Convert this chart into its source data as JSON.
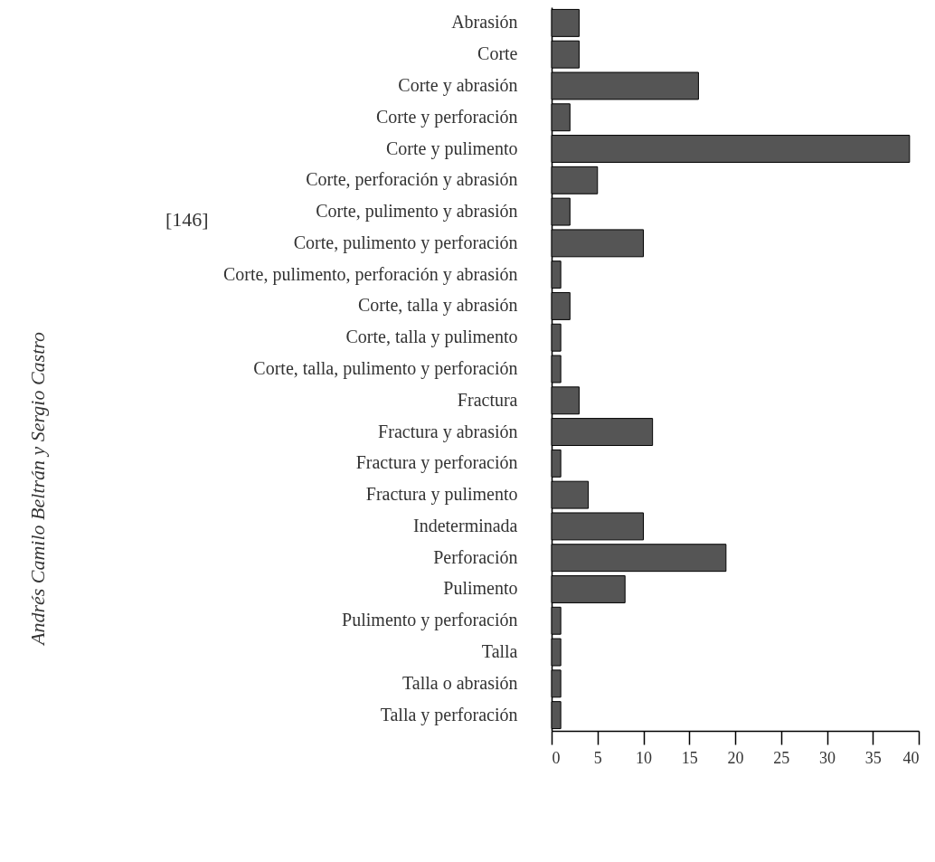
{
  "chart_data": {
    "type": "bar",
    "orientation": "horizontal",
    "categories": [
      "Abrasión",
      "Corte",
      "Corte y abrasión",
      "Corte y perforación",
      "Corte y pulimento",
      "Corte, perforación y abrasión",
      "Corte, pulimento y abrasión",
      "Corte, pulimento y perforación",
      "Corte, pulimento, perforación y abrasión",
      "Corte, talla y abrasión",
      "Corte, talla y pulimento",
      "Corte, talla, pulimento y perforación",
      "Fractura",
      "Fractura y abrasión",
      "Fractura y perforación",
      "Fractura y pulimento",
      "Indeterminada",
      "Perforación",
      "Pulimento",
      "Pulimento y perforación",
      "Talla",
      "Talla o abrasión",
      "Talla y perforación"
    ],
    "values": [
      3,
      3,
      16,
      2,
      39,
      5,
      2,
      10,
      1,
      2,
      1,
      1,
      3,
      11,
      1,
      4,
      10,
      19,
      8,
      1,
      1,
      1,
      1
    ],
    "color": "#555555",
    "xlim": [
      0,
      40
    ],
    "xticks": [
      0,
      5,
      10,
      15,
      20,
      25,
      30,
      35,
      40
    ],
    "grid": false,
    "annotations": [
      "[146]",
      "Andrés Camilo Beltrán y Sergio Castro"
    ]
  }
}
